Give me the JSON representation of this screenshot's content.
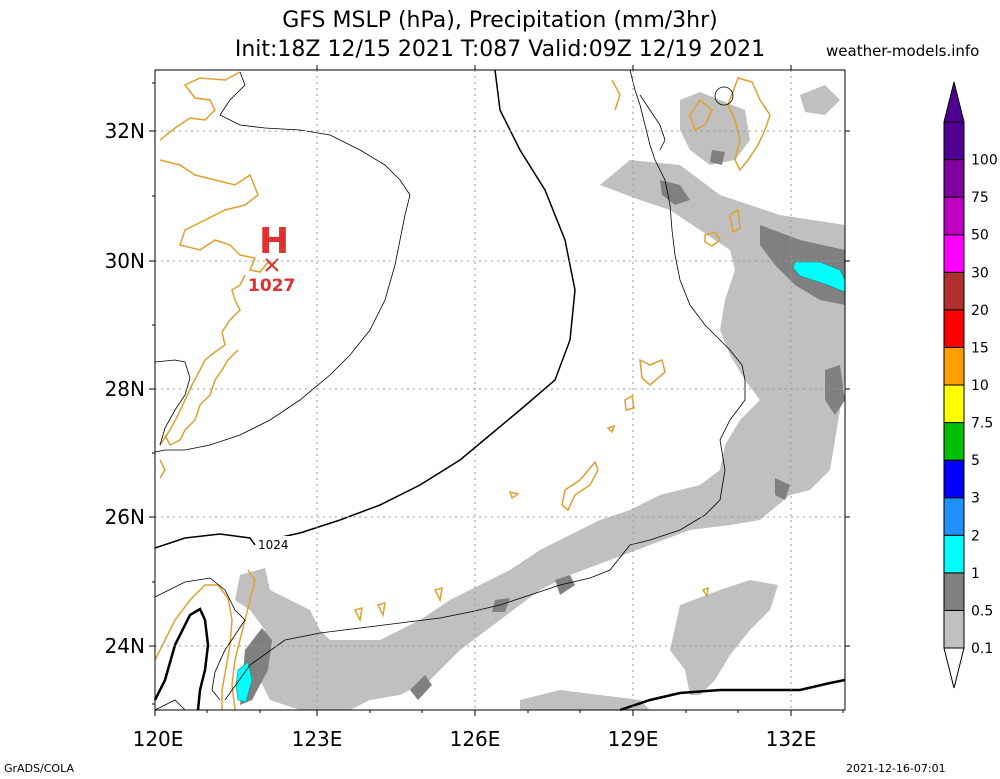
{
  "title": {
    "line1": "GFS MSLP (hPa), Precipitation (mm/3hr)",
    "line2": "Init:18Z 12/15 2021 T:087 Valid:09Z 12/19 2021"
  },
  "site": "weather-models.info",
  "footer": {
    "left": "GrADS/COLA",
    "right": "2021-12-16-07:01"
  },
  "map": {
    "lon_labels": [
      "120E",
      "123E",
      "126E",
      "129E",
      "132E"
    ],
    "lat_labels": [
      "32N",
      "30N",
      "28N",
      "26N",
      "24N"
    ],
    "isobar_label": "1024",
    "high": {
      "symbol": "H",
      "value": "1027"
    }
  },
  "colorbar": {
    "levels": [
      "0.1",
      "0.5",
      "1",
      "2",
      "3",
      "5",
      "7.5",
      "10",
      "15",
      "20",
      "30",
      "50",
      "75",
      "100"
    ],
    "colors": [
      "#c0c0c0",
      "#808080",
      "#00ffff",
      "#1e90ff",
      "#0000ff",
      "#00c000",
      "#ffff00",
      "#ffa000",
      "#ff0000",
      "#b03030",
      "#ff00ff",
      "#c000c0",
      "#8000a0",
      "#500090"
    ]
  },
  "colors": {
    "coast": "#e0a030",
    "high": "#e03030",
    "grid": "#999999"
  }
}
